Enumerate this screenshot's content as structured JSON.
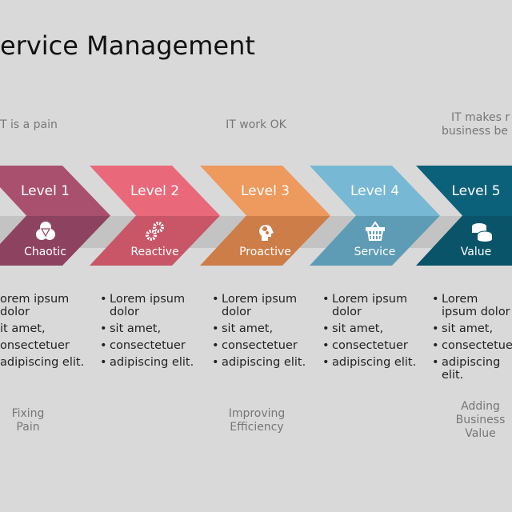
{
  "title": "ervice Management",
  "top_captions": [
    {
      "lines": [
        "T is a pain"
      ]
    },
    {
      "lines": [
        "IT work OK"
      ]
    },
    {
      "lines": [
        "IT makes r",
        "business be"
      ]
    }
  ],
  "levels": [
    {
      "label": "Level 1",
      "sub": "Chaotic",
      "icon": "venn-circles-icon",
      "color_top": "#a9506f",
      "color_bottom": "#8d4360"
    },
    {
      "label": "Level 2",
      "sub": "Reactive",
      "icon": "gears-icon",
      "color_top": "#e9697b",
      "color_bottom": "#c85667"
    },
    {
      "label": "Level 3",
      "sub": "Proactive",
      "icon": "head-gears-icon",
      "color_top": "#ee995d",
      "color_bottom": "#cd7d48"
    },
    {
      "label": "Level 4",
      "sub": "Service",
      "icon": "basket-icon",
      "color_top": "#77b8d4",
      "color_bottom": "#5e9cb6"
    },
    {
      "label": "Level 5",
      "sub": "Value",
      "icon": "coins-icon",
      "color_top": "#0c617a",
      "color_bottom": "#0a5469"
    }
  ],
  "bullets": [
    [
      "orem ipsum dolor",
      "it amet,",
      "onsectetuer",
      "adipiscing elit."
    ],
    [
      "Lorem ipsum dolor",
      "sit amet,",
      "consectetuer",
      "adipiscing elit."
    ],
    [
      "Lorem ipsum dolor",
      "sit amet,",
      "consectetuer",
      "adipiscing elit."
    ],
    [
      "Lorem ipsum dolor",
      "sit amet,",
      "consectetuer",
      "adipiscing elit."
    ],
    [
      "Lorem ipsum dolor",
      "sit amet,",
      "consectetuer",
      "adipiscing elit."
    ]
  ],
  "bottom_captions": [
    {
      "lines": [
        "Fixing",
        "Pain"
      ]
    },
    {
      "lines": [
        "Improving",
        "Efficiency"
      ]
    },
    {
      "lines": [
        "Adding",
        "Business",
        "Value"
      ]
    }
  ]
}
